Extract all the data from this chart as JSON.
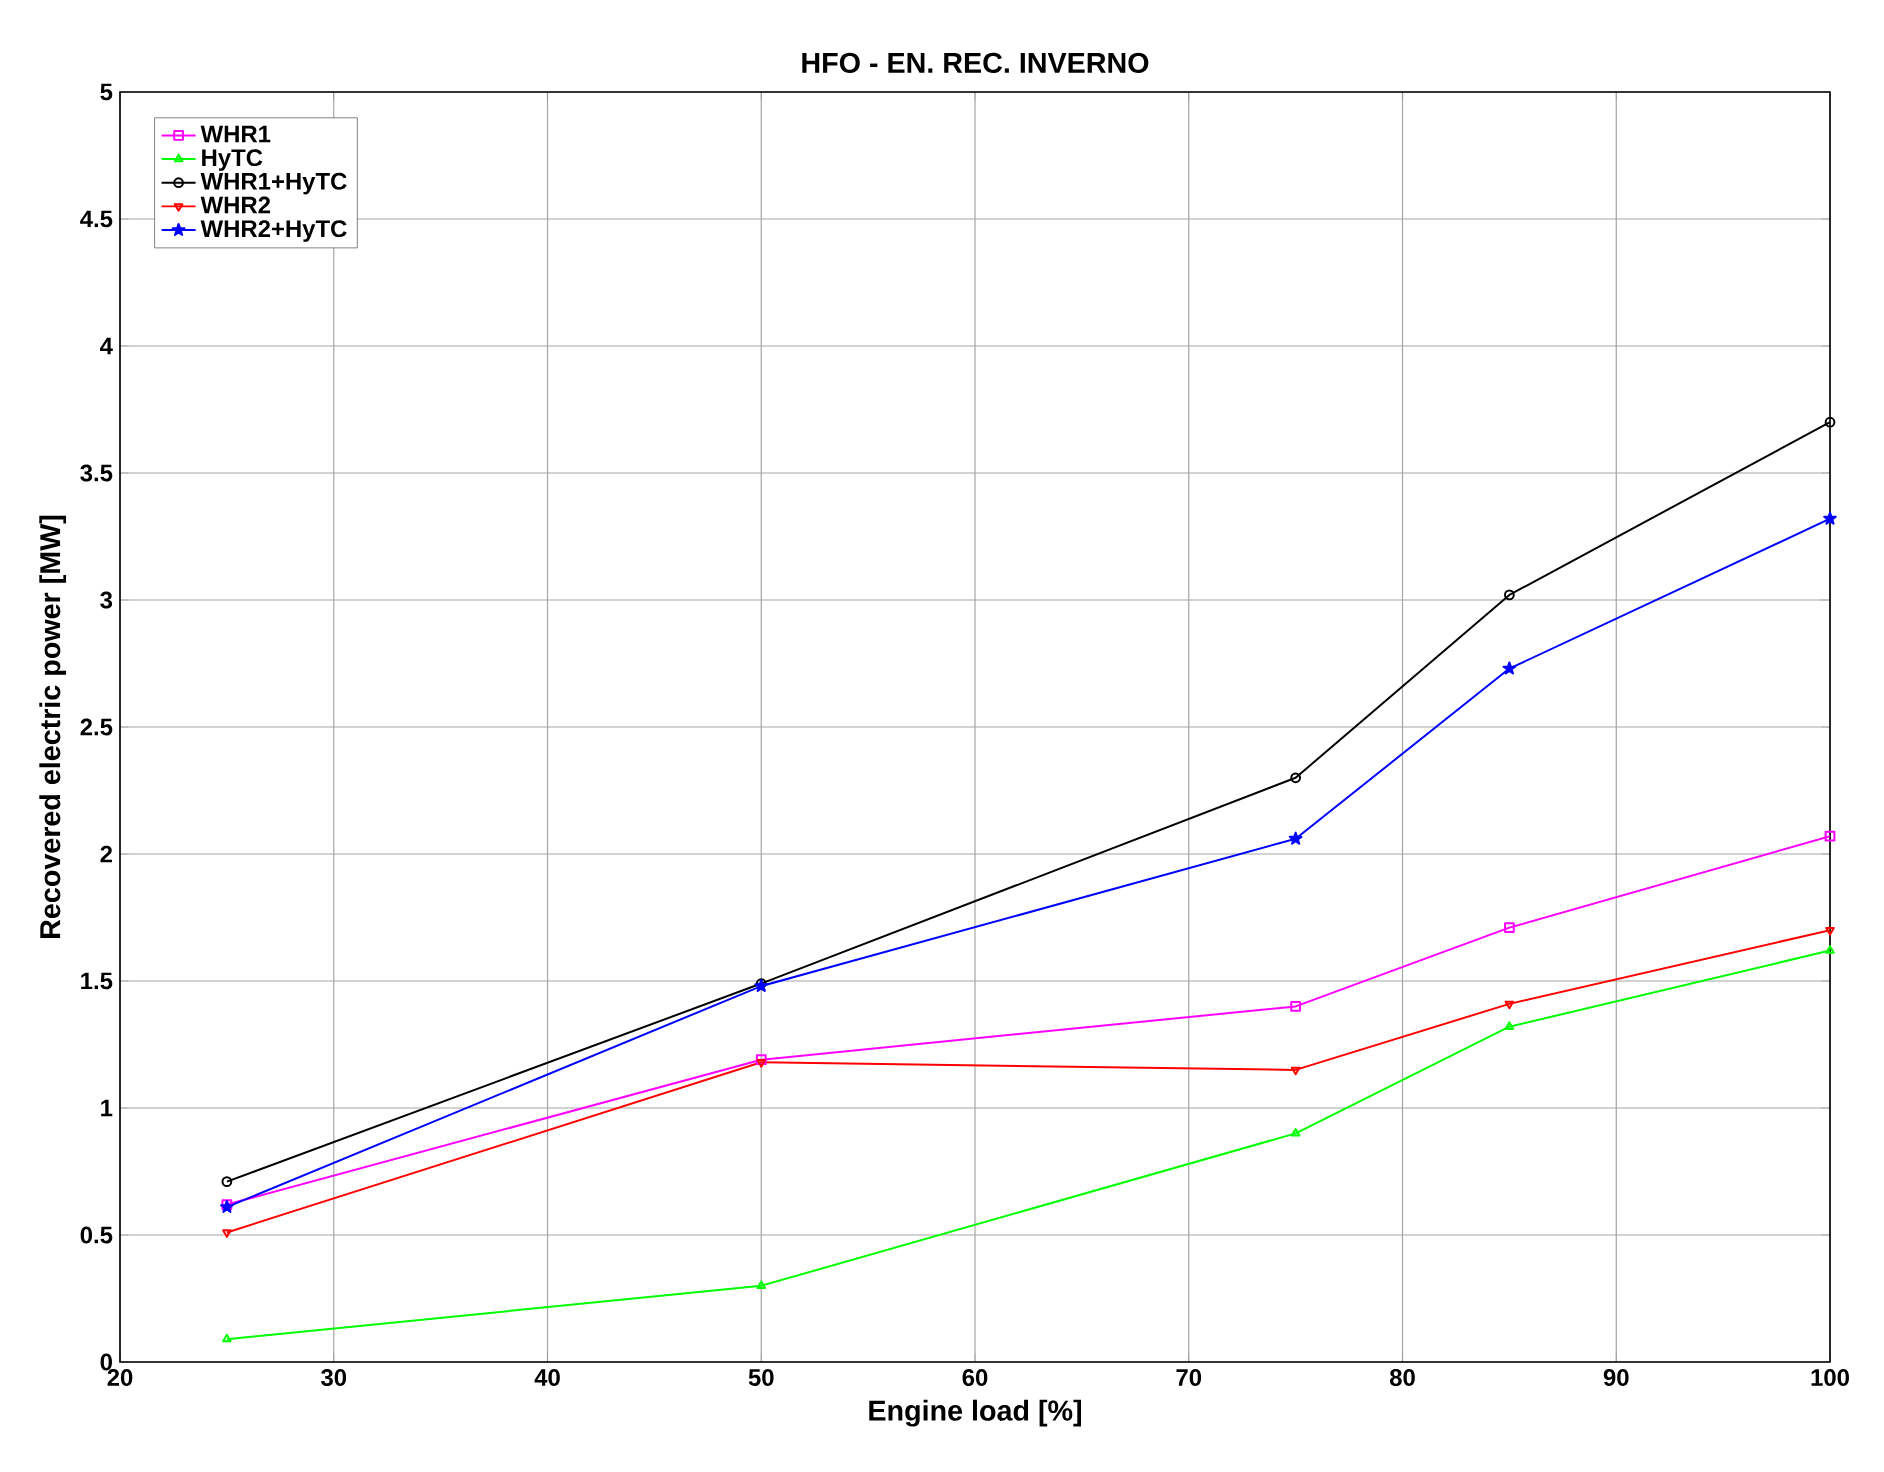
{
  "chart_data": {
    "type": "line",
    "title": "HFO - EN. REC. INVERNO",
    "xlabel": "Engine load [%]",
    "ylabel": "Recovered electric power [MW]",
    "x": [
      25,
      50,
      75,
      85,
      100
    ],
    "series": [
      {
        "name": "WHR1",
        "color": "#ff00ff",
        "marker": "square",
        "values": [
          0.62,
          1.19,
          1.4,
          1.71,
          2.07
        ]
      },
      {
        "name": "HyTC",
        "color": "#00ff00",
        "marker": "triangle",
        "values": [
          0.09,
          0.3,
          0.9,
          1.32,
          1.62
        ]
      },
      {
        "name": "WHR1+HyTC",
        "color": "#000000",
        "marker": "circle",
        "values": [
          0.71,
          1.49,
          2.3,
          3.02,
          3.7
        ]
      },
      {
        "name": "WHR2",
        "color": "#ff0000",
        "marker": "triangle down",
        "values": [
          0.51,
          1.18,
          1.15,
          1.41,
          1.7
        ]
      },
      {
        "name": "WHR2+HyTC",
        "color": "#0000ff",
        "marker": "star",
        "values": [
          0.61,
          1.48,
          2.06,
          2.73,
          3.32
        ]
      }
    ],
    "xlim": [
      20,
      100
    ],
    "xticks": [
      20,
      30,
      40,
      50,
      60,
      70,
      80,
      90,
      100
    ],
    "ylim": [
      0,
      5
    ],
    "yticks": [
      0,
      0.5,
      1,
      1.5,
      2,
      2.5,
      3,
      3.5,
      4,
      4.5,
      5
    ],
    "grid": true,
    "legend": "top left",
    "line_style": "solid"
  }
}
